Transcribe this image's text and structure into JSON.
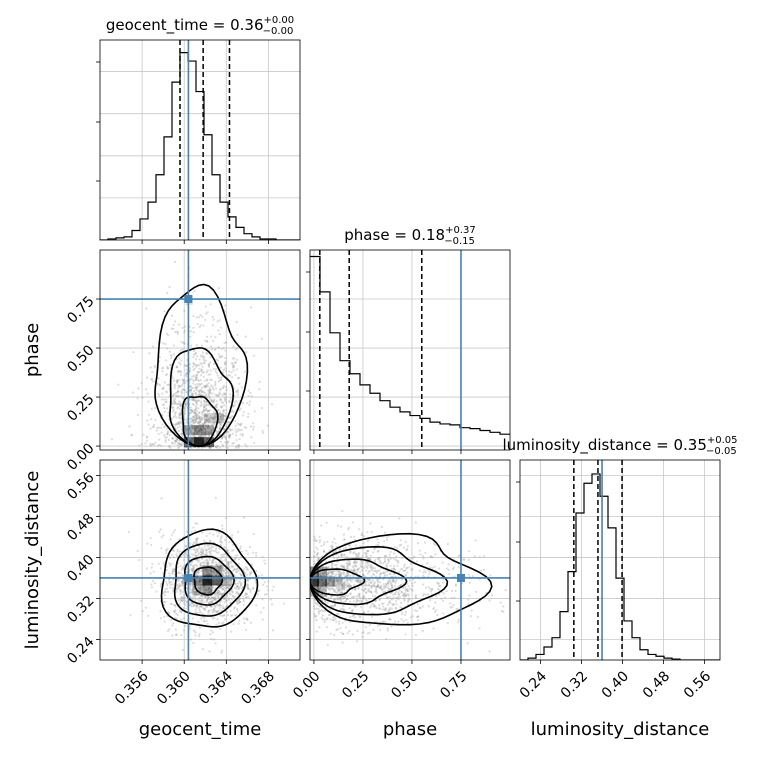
{
  "chart_data": {
    "type": "corner",
    "truth_color": "#4682b4",
    "grid": true,
    "parameters": [
      {
        "name": "geocent_time",
        "title": {
          "prefix": "geocent_time = ",
          "value": "0.36",
          "upper": "+0.00",
          "lower": "−0.00"
        },
        "range": [
          0.352,
          0.371
        ],
        "ticks": [
          "0.356",
          "0.360",
          "0.364",
          "0.368"
        ],
        "tick_values": [
          0.356,
          0.36,
          0.364,
          0.368
        ],
        "truth": 0.3604,
        "quantiles": [
          0.3596,
          0.3618,
          0.3643
        ],
        "hist_edges_start": 0.352,
        "hist_bin_width": 0.00076,
        "hist": [
          0,
          1,
          2,
          3,
          9,
          20,
          36,
          62,
          98,
          150,
          178,
          170,
          141,
          100,
          62,
          36,
          22,
          12,
          6,
          3,
          1,
          1,
          0,
          0,
          0
        ],
        "hist_max": 190
      },
      {
        "name": "phase",
        "title": {
          "prefix": "phase = ",
          "value": "0.18",
          "upper": "+0.37",
          "lower": "−0.15"
        },
        "range": [
          -0.02,
          1.0
        ],
        "ticks": [
          "0.00",
          "0.25",
          "0.50",
          "0.75"
        ],
        "tick_values": [
          0.0,
          0.25,
          0.5,
          0.75
        ],
        "truth": 0.75,
        "quantiles": [
          0.03,
          0.18,
          0.55
        ],
        "hist_edges_start": -0.02,
        "hist_bin_width": 0.051,
        "hist": [
          208,
          170,
          126,
          96,
          82,
          70,
          61,
          53,
          46,
          41,
          37,
          34,
          30,
          28,
          27,
          24,
          23,
          21,
          19,
          17
        ],
        "hist_max": 215
      },
      {
        "name": "luminosity_distance",
        "title": {
          "prefix": "luminosity_distance = ",
          "value": "0.35",
          "upper": "+0.05",
          "lower": "−0.05"
        },
        "range": [
          0.2,
          0.59
        ],
        "ticks": [
          "0.24",
          "0.32",
          "0.40",
          "0.48",
          "0.56"
        ],
        "tick_values": [
          0.24,
          0.32,
          0.4,
          0.48,
          0.56
        ],
        "truth": 0.36,
        "quantiles": [
          0.305,
          0.352,
          0.399
        ],
        "hist_edges_start": 0.2,
        "hist_bin_width": 0.0156,
        "hist": [
          0,
          2,
          6,
          14,
          24,
          52,
          95,
          158,
          190,
          200,
          176,
          142,
          88,
          42,
          24,
          11,
          6,
          4,
          2,
          1,
          0,
          0,
          0,
          0,
          0
        ],
        "hist_max": 215
      }
    ],
    "pairs": [
      {
        "x": "geocent_time",
        "y": "phase",
        "truth": [
          0.3604,
          0.75
        ]
      },
      {
        "x": "geocent_time",
        "y": "luminosity_distance",
        "truth": [
          0.3604,
          0.36
        ]
      },
      {
        "x": "phase",
        "y": "luminosity_distance",
        "truth": [
          0.75,
          0.36
        ]
      }
    ]
  }
}
